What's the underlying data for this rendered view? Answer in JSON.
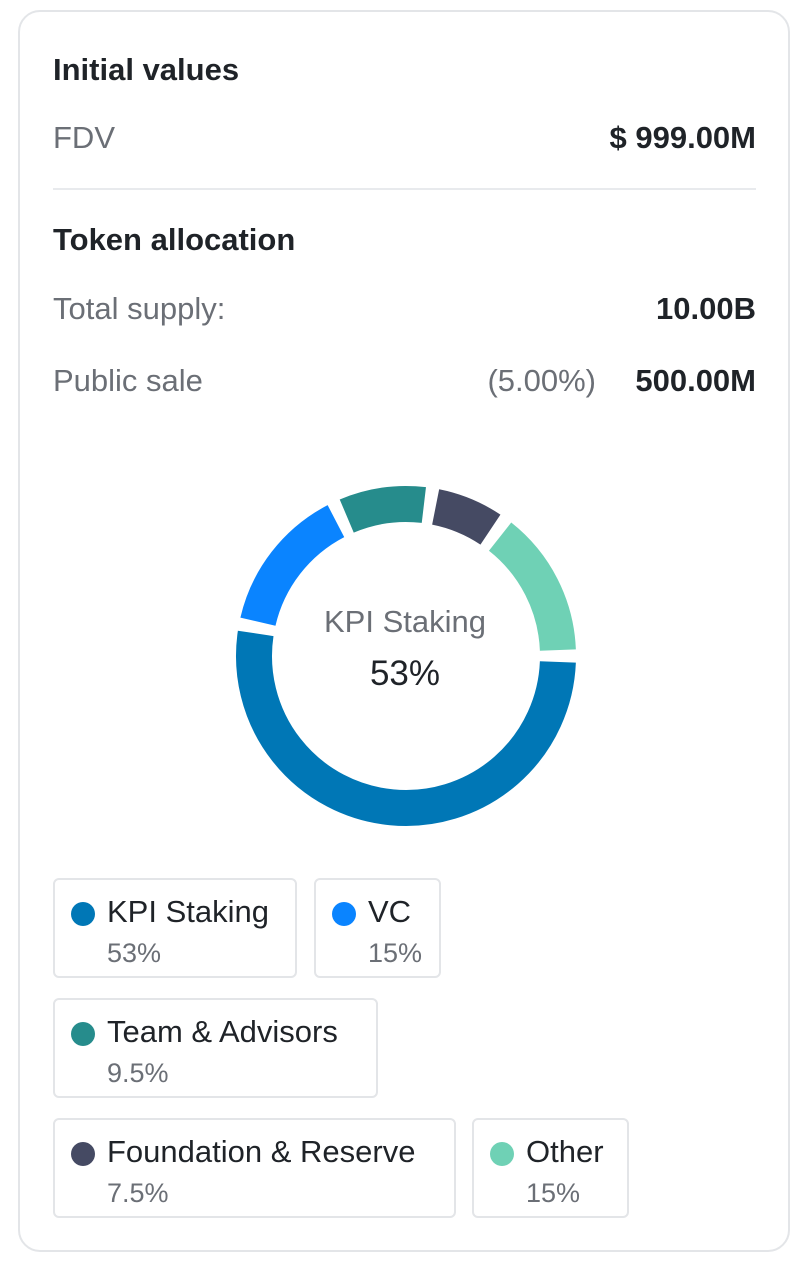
{
  "initial_values": {
    "title": "Initial values",
    "fdv_label": "FDV",
    "fdv_value": "$ 999.00M"
  },
  "token_allocation": {
    "title": "Token allocation",
    "total_supply_label": "Total supply:",
    "total_supply_value": "10.00B",
    "public_sale_label": "Public sale",
    "public_sale_pct": "(5.00%)",
    "public_sale_value": "500.00M"
  },
  "donut_center": {
    "label": "KPI Staking",
    "value": "53%"
  },
  "chart_data": {
    "type": "pie",
    "categories": [
      "KPI Staking",
      "VC",
      "Team & Advisors",
      "Foundation & Reserve",
      "Other"
    ],
    "values": [
      53,
      15,
      9.5,
      7.5,
      15
    ],
    "colors": [
      "#0077b6",
      "#0a84ff",
      "#268c8c",
      "#454a63",
      "#6fd1b5"
    ],
    "donut": true
  },
  "legend": [
    {
      "name": "KPI Staking",
      "value": "53%",
      "color": "#0077b6"
    },
    {
      "name": "VC",
      "value": "15%",
      "color": "#0a84ff"
    },
    {
      "name": "Team & Advisors",
      "value": "9.5%",
      "color": "#268c8c"
    },
    {
      "name": "Foundation & Reserve",
      "value": "7.5%",
      "color": "#454a63"
    },
    {
      "name": "Other",
      "value": "15%",
      "color": "#6fd1b5"
    }
  ]
}
